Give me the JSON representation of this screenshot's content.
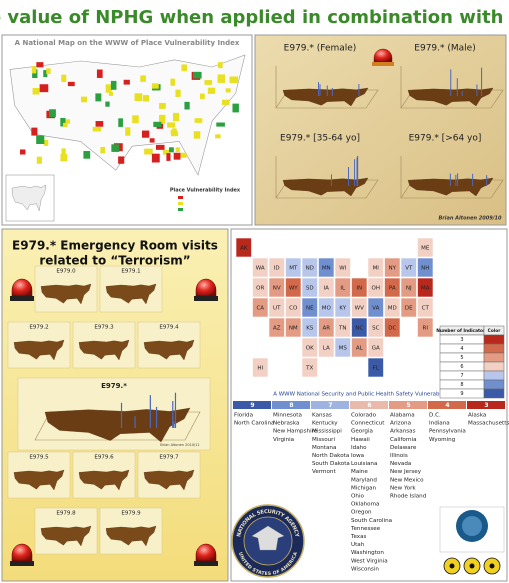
{
  "title": "The value of NPHG when applied in combination with GIS",
  "place_map": {
    "title": "A National Map on the WWW of Place Vulnerability Index",
    "legend_title": "Place Vulnerability Index"
  },
  "demographic_panels": {
    "panels": [
      "E979.*  (Female)",
      "E979.* (Male)",
      "E979.* [35-64 yo]",
      "E979.*  [>64 yo]"
    ],
    "credit": "Brian Altonen 2009/10"
  },
  "er_panel": {
    "title_line1": "E979.*  Emergency Room visits",
    "title_line2": "related to “Terrorism”",
    "thumbnails": [
      "E979.0",
      "E979.1",
      "E979.2",
      "E979.3",
      "E979.4",
      "E979.5",
      "E979.6",
      "E979.7",
      "E979.8",
      "E979.9"
    ],
    "main_chart": "E979.*",
    "credit": "Brian Altonen 2010/11"
  },
  "security_map": {
    "states": [
      {
        "abbr": "AK",
        "color": "#b8281c"
      },
      {
        "abbr": "ME",
        "color": "#f2d0c4"
      },
      {
        "abbr": "WA",
        "color": "#f2d0c4"
      },
      {
        "abbr": "ID",
        "color": "#f2d0c4"
      },
      {
        "abbr": "MT",
        "color": "#b7c6ea"
      },
      {
        "abbr": "ND",
        "color": "#b7c6ea"
      },
      {
        "abbr": "MN",
        "color": "#6f8fcf"
      },
      {
        "abbr": "WI",
        "color": "#f2d0c4"
      },
      {
        "abbr": "MI",
        "color": "#f2d0c4"
      },
      {
        "abbr": "NY",
        "color": "#e39b83"
      },
      {
        "abbr": "VT",
        "color": "#b7c6ea"
      },
      {
        "abbr": "NH",
        "color": "#6f8fcf"
      },
      {
        "abbr": "OR",
        "color": "#f2d0c4"
      },
      {
        "abbr": "NV",
        "color": "#e39b83"
      },
      {
        "abbr": "WY",
        "color": "#d2694a"
      },
      {
        "abbr": "SD",
        "color": "#b7c6ea"
      },
      {
        "abbr": "IA",
        "color": "#f2d0c4"
      },
      {
        "abbr": "IL",
        "color": "#e39b83"
      },
      {
        "abbr": "IN",
        "color": "#d2694a"
      },
      {
        "abbr": "OH",
        "color": "#f2d0c4"
      },
      {
        "abbr": "PA",
        "color": "#d2694a"
      },
      {
        "abbr": "NJ",
        "color": "#e39b83"
      },
      {
        "abbr": "MA",
        "color": "#b8281c"
      },
      {
        "abbr": "CA",
        "color": "#e39b83"
      },
      {
        "abbr": "UT",
        "color": "#f2d0c4"
      },
      {
        "abbr": "CO",
        "color": "#f2d0c4"
      },
      {
        "abbr": "NE",
        "color": "#6f8fcf"
      },
      {
        "abbr": "MO",
        "color": "#b7c6ea"
      },
      {
        "abbr": "KY",
        "color": "#b7c6ea"
      },
      {
        "abbr": "WV",
        "color": "#f2d0c4"
      },
      {
        "abbr": "VA",
        "color": "#6f8fcf"
      },
      {
        "abbr": "MD",
        "color": "#f2d0c4"
      },
      {
        "abbr": "DE",
        "color": "#e39b83"
      },
      {
        "abbr": "CT",
        "color": "#f2d0c4"
      },
      {
        "abbr": "AZ",
        "color": "#e39b83"
      },
      {
        "abbr": "NM",
        "color": "#e39b83"
      },
      {
        "abbr": "KS",
        "color": "#b7c6ea"
      },
      {
        "abbr": "AR",
        "color": "#e39b83"
      },
      {
        "abbr": "TN",
        "color": "#f2d0c4"
      },
      {
        "abbr": "NC",
        "color": "#3a5aa8"
      },
      {
        "abbr": "SC",
        "color": "#f2d0c4"
      },
      {
        "abbr": "DC",
        "color": "#d2694a"
      },
      {
        "abbr": "RI",
        "color": "#e39b83"
      },
      {
        "abbr": "OK",
        "color": "#f2d0c4"
      },
      {
        "abbr": "LA",
        "color": "#f2d0c4"
      },
      {
        "abbr": "MS",
        "color": "#b7c6ea"
      },
      {
        "abbr": "AL",
        "color": "#e39b83"
      },
      {
        "abbr": "GA",
        "color": "#f2d0c4"
      },
      {
        "abbr": "HI",
        "color": "#f2d0c4"
      },
      {
        "abbr": "TX",
        "color": "#f2d0c4"
      },
      {
        "abbr": "FL",
        "color": "#3a5aa8"
      }
    ],
    "legend": {
      "headers": [
        "Number of Indicators",
        "Color"
      ],
      "rows": [
        {
          "count": 3,
          "color": "#b8281c"
        },
        {
          "count": 4,
          "color": "#d2694a"
        },
        {
          "count": 5,
          "color": "#e39b83"
        },
        {
          "count": 6,
          "color": "#f2d0c4"
        },
        {
          "count": 7,
          "color": "#b7c6ea"
        },
        {
          "count": 8,
          "color": "#6f8fcf"
        },
        {
          "count": 9,
          "color": "#3a5aa8"
        }
      ]
    },
    "caption": "A WWW National Security and Public Health Safety Vulnerability Map",
    "groups": [
      {
        "count": 9,
        "color": "#3a5aa8",
        "states": [
          "Florida",
          "North Carolina"
        ]
      },
      {
        "count": 8,
        "color": "#6f8fcf",
        "states": [
          "Minnesota",
          "Nebraska",
          "New Hampshire",
          "Virginia"
        ]
      },
      {
        "count": 7,
        "color": "#9fb3e0",
        "states": [
          "Kansas",
          "Kentucky",
          "Mississippi",
          "Missouri",
          "Montana",
          "North Dakota",
          "South Dakota",
          "Vermont"
        ]
      },
      {
        "count": 6,
        "color": "#e9b9ab",
        "states": [
          "Colorado",
          "Connecticut",
          "Georgia",
          "Hawaii",
          "Idaho",
          "Iowa",
          "Louisiana",
          "Maine",
          "Maryland",
          "Michigan",
          "Ohio",
          "Oklahoma",
          "Oregon",
          "South Carolina",
          "Tennessee",
          "Texas",
          "Utah",
          "Washington",
          "West Virginia",
          "Wisconsin"
        ]
      },
      {
        "count": 5,
        "color": "#e39b83",
        "states": [
          "Alabama",
          "Arizona",
          "Arkansas",
          "California",
          "Delaware",
          "Illinois",
          "Nevada",
          "New Jersey",
          "New Mexico",
          "New York",
          "Rhode Island"
        ]
      },
      {
        "count": 4,
        "color": "#d2694a",
        "states": [
          "D.C.",
          "Indiana",
          "Pennsylvania",
          "Wyoming"
        ]
      },
      {
        "count": 3,
        "color": "#b8281c",
        "states": [
          "Alaska",
          "Massachusetts"
        ]
      }
    ]
  },
  "seal": {
    "top": "NATIONAL SECURITY AGENCY",
    "bottom": "UNITED STATES OF AMERICA"
  }
}
